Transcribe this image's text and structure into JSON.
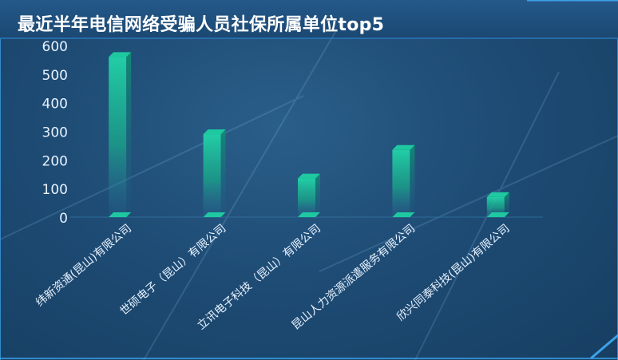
{
  "title": "最近半年电信网络受骗人员社保所属单位top5",
  "colors": {
    "bar_top": "#1ec9a0",
    "bar_face": "#17b08c",
    "axis_text": "#e8f2ff",
    "frame": "#3ba2e8"
  },
  "chart_data": {
    "type": "bar",
    "title": "最近半年电信网络受骗人员社保所属单位top5",
    "xlabel": "",
    "ylabel": "",
    "categories": [
      "纬新资通(昆山)有限公司",
      "世硕电子（昆山）有限公司",
      "立讯电子科技（昆山）有限公司",
      "昆山人力资源派遣服务有限公司",
      "欣兴同泰科技(昆山)有限公司"
    ],
    "values": [
      560,
      290,
      135,
      235,
      70
    ],
    "ylim": [
      0,
      600
    ],
    "yticks": [
      "0",
      "100",
      "200",
      "300",
      "400",
      "500",
      "600"
    ],
    "grid": false
  }
}
